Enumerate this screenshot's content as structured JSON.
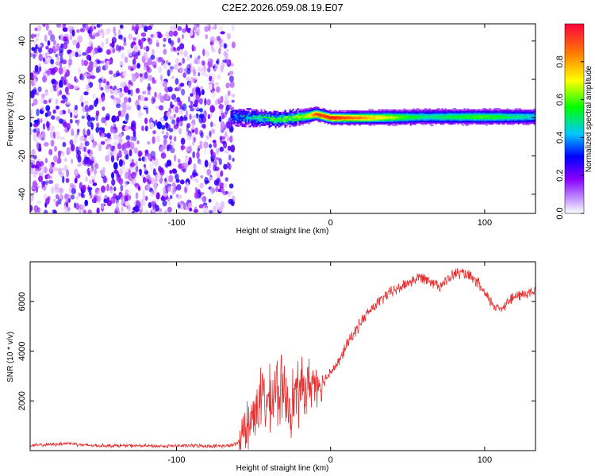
{
  "figure": {
    "title": "C2E2.2026.059.08.19.E07"
  },
  "chart_data": [
    {
      "type": "heatmap",
      "title": "C2E2.2026.059.08.19.E07",
      "xlabel": "Height of straight line (km)",
      "ylabel": "Frequency (Hz)",
      "xlim": [
        -195,
        133
      ],
      "ylim": [
        -50,
        49
      ],
      "xticks": [
        -100,
        0,
        100
      ],
      "xtick_labels": [
        "-100",
        "0",
        "100"
      ],
      "yticks": [
        -40,
        -20,
        0,
        20,
        40
      ],
      "ytick_labels": [
        "-40",
        "-20",
        "0",
        "20",
        "40"
      ],
      "colorbar": {
        "label": "Normalized spectral amplitude",
        "range": [
          0,
          1
        ],
        "ticks": [
          0,
          0.2,
          0.4,
          0.6,
          0.8
        ],
        "tick_labels": [
          "0.0",
          "0.2",
          "0.4",
          "0.6",
          "0.8"
        ],
        "colormap": [
          "#ffffff",
          "#8a00ff",
          "#0000ff",
          "#00c8ff",
          "#00ff00",
          "#ffff00",
          "#ff8000",
          "#ff0000"
        ]
      },
      "noise_region_km": [
        -195,
        -63
      ],
      "ridge": {
        "x": [
          -65,
          -55,
          -45,
          -35,
          -25,
          -15,
          -10,
          0,
          20,
          60,
          100,
          133
        ],
        "freq": [
          1,
          0,
          0,
          -1,
          0,
          1,
          2,
          0,
          0,
          0.5,
          0.5,
          0.5
        ],
        "amplitude": [
          0.3,
          0.45,
          0.5,
          0.55,
          0.6,
          0.7,
          0.95,
          1.0,
          0.85,
          0.5,
          0.6,
          0.45
        ]
      }
    },
    {
      "type": "line",
      "xlabel": "Height of straight line (km)",
      "ylabel": "SNR (10 * v/v)",
      "xlim": [
        -195,
        133
      ],
      "ylim": [
        0,
        7600
      ],
      "xticks": [
        -100,
        0,
        100
      ],
      "xtick_labels": [
        "-100",
        "0",
        "100"
      ],
      "yticks": [
        2000,
        4000,
        6000
      ],
      "ytick_labels": [
        "2000",
        "4000",
        "6000"
      ],
      "color": "#e83030",
      "series": [
        {
          "name": "SNR",
          "x": [
            -195,
            -180,
            -170,
            -160,
            -150,
            -130,
            -110,
            -90,
            -75,
            -65,
            -60,
            -55,
            -50,
            -45,
            -40,
            -35,
            -30,
            -25,
            -20,
            -15,
            -10,
            -5,
            0,
            5,
            10,
            15,
            20,
            25,
            30,
            35,
            40,
            45,
            50,
            55,
            60,
            65,
            70,
            75,
            80,
            85,
            90,
            95,
            100,
            105,
            110,
            115,
            120,
            125,
            133
          ],
          "y": [
            200,
            250,
            300,
            220,
            200,
            200,
            180,
            200,
            180,
            200,
            300,
            800,
            1500,
            2200,
            1800,
            2500,
            2200,
            2000,
            2400,
            2600,
            2800,
            2700,
            3200,
            3500,
            4200,
            4700,
            5200,
            5600,
            5900,
            6200,
            6400,
            6550,
            6750,
            6900,
            7000,
            6850,
            6650,
            6800,
            7100,
            7150,
            7000,
            6800,
            6300,
            5900,
            5700,
            6000,
            6200,
            6300,
            6400
          ],
          "noise_amplitude": 300
        }
      ]
    }
  ]
}
